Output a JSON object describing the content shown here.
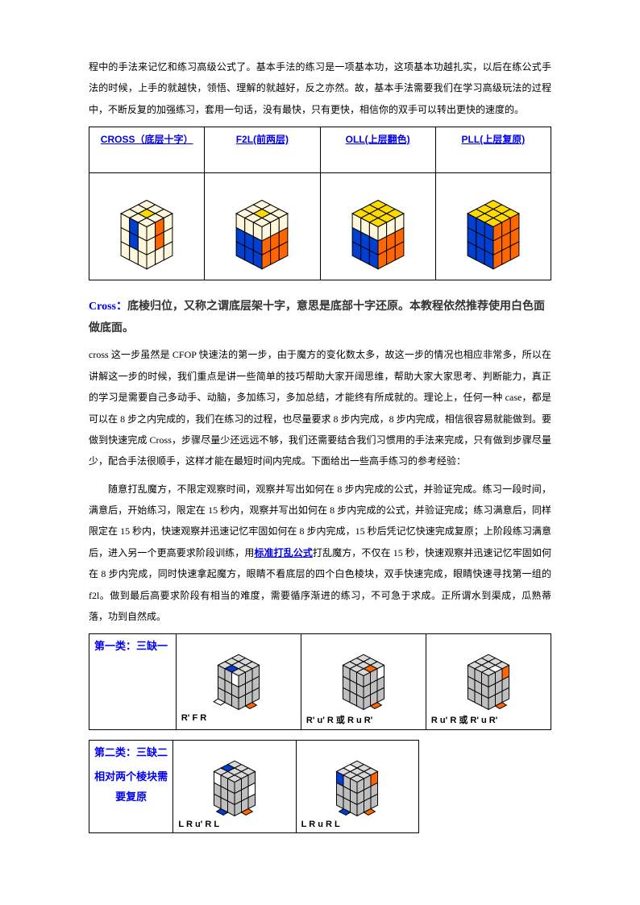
{
  "intro": "程中的手法来记忆和练习高级公式了。基本手法的练习是一项基本功，这项基本功越扎实，以后在练公式手法的时候，上手的就越快，领悟、理解的就越好，反之亦然。故，基本手法需要我们在学习高级玩法的过程中，不断反复的加强练习，套用一句话，没有最快，只有更快，相信你的双手可以转出更快的速度的。",
  "headers": {
    "cross": "CROSS（底层十字）",
    "f2l": "F2L(前两层)",
    "oll": "OLL(上层翻色)",
    "pll": "PLL(上层复原)"
  },
  "cross_title_prefix": "Cross：",
  "cross_title_body": "底棱归位，又称之谓底层架十字，意思是底部十字还原。本教程依然推荐使用白色面做底面。",
  "para1": "cross 这一步虽然是 CFOP 快速法的第一步，由于魔方的变化数太多，故这一步的情况也相应非常多，所以在讲解这一步的时候，我们重点是讲一些简单的技巧帮助大家开阔思维，帮助大家大家思考、判断能力，真正的学习是需要自己多动手、动脑，多加练习，多加总结，才能终有所成就的。理论上，任何一种 case，都是可以在 8 步之内完成的，我们在练习的过程，也尽量要求 8 步内完成，8 步内完成，相信很容易就能做到。要做到快速完成 Cross，步骤尽量少还远远不够，我们还需要结合我们习惯用的手法来完成，只有做到步骤尽量少，配合手法很顺手，这样才能在最短时间内完成。下面给出一些高手练习的参考经验：",
  "para2_a": "随意打乱魔方，不限定观察时间，观察并写出如何在 8 步内完成的公式，并验证完成。练习一段时间，满意后，开始练习，限定在 15 秒内，观察并写出如何在 8 步内完成的公式，并验证完成；练习满意后，同样限定在 15 秒内，快速观察并迅速记忆牢固如何在 8 步内完成，15 秒后凭记忆快速完成复原；上阶段练习满意后，进入另一个更高要求阶段训练，用",
  "scramble_link": "标准打乱公式",
  "para2_b": "打乱魔方，不仅在 15 秒，快速观察并迅速记忆牢固如何在 8 步内完成，同时快速拿起魔方，眼睛不看底层的四个白色棱块，双手快速完成，眼睛快速寻找第一组的 f2l。做到最后高要求阶段有相当的难度，需要循序渐进的练习，不可急于求成。正所谓水到渠成，瓜熟蒂落，功到自然成。",
  "case1": {
    "label": "第一类：三缺一",
    "f1": "R' F R",
    "f2": "R' u' R 或 R u R'",
    "f3": "R u' R 或 R' u R'"
  },
  "case2": {
    "label": "第二类：三缺二",
    "sub": "相对两个棱块需要复原",
    "f1": "L R u' R L",
    "f2": "L R u R L"
  },
  "colors": {
    "yellow": "#fddb00",
    "orange": "#ff6600",
    "blue": "#003fcf",
    "cream": "#fff7dc",
    "grey": "#bfbfbf",
    "greyLight": "#d9d9d9",
    "white": "#ffffff",
    "line": "#000000"
  }
}
